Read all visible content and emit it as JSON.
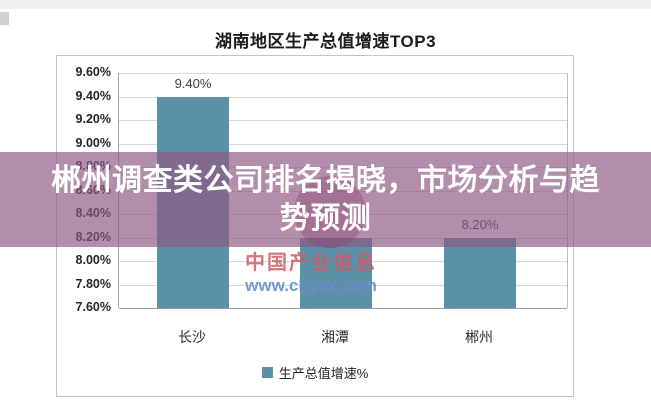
{
  "chart_data": {
    "type": "bar",
    "title": "湖南地区生产总值增速TOP3",
    "categories": [
      "长沙",
      "湘潭",
      "郴州"
    ],
    "series": [
      {
        "name": "生产总值增速%",
        "values": [
          9.4,
          8.2,
          8.2
        ]
      }
    ],
    "value_labels": [
      "9.40%",
      "",
      "8.20%"
    ],
    "value_label_visible": [
      true,
      false,
      true
    ],
    "y_ticks": [
      "9.60%",
      "9.40%",
      "9.20%",
      "9.00%",
      "8.80%",
      "8.60%",
      "8.40%",
      "8.20%",
      "8.00%",
      "7.80%",
      "7.60%"
    ],
    "ylim": [
      7.6,
      9.6
    ],
    "grid": true,
    "legend_position": "bottom",
    "bar_color": "#5b91a8"
  },
  "legend": {
    "label": "生产总值增速%"
  },
  "overlay": {
    "text": "郴州调查类公司排名揭晓，市场分析与趋势预测",
    "lines": [
      "郴州调查类公司排名揭晓，市场分析与趋",
      "势预测"
    ],
    "bg_color": "#8E5682",
    "bg_opacity": 0.67,
    "text_color": "#ffffff"
  },
  "watermark": {
    "brand": "中国产业信息",
    "url": "www.chyxx.com",
    "brand_color": "#CB5D63",
    "url_color": "#658ECB"
  },
  "colors": {
    "bar": "#5b91a8",
    "gridline": "#d8d8d8",
    "axis": "#9e9e9e",
    "box_border": "#c5c5c5"
  }
}
